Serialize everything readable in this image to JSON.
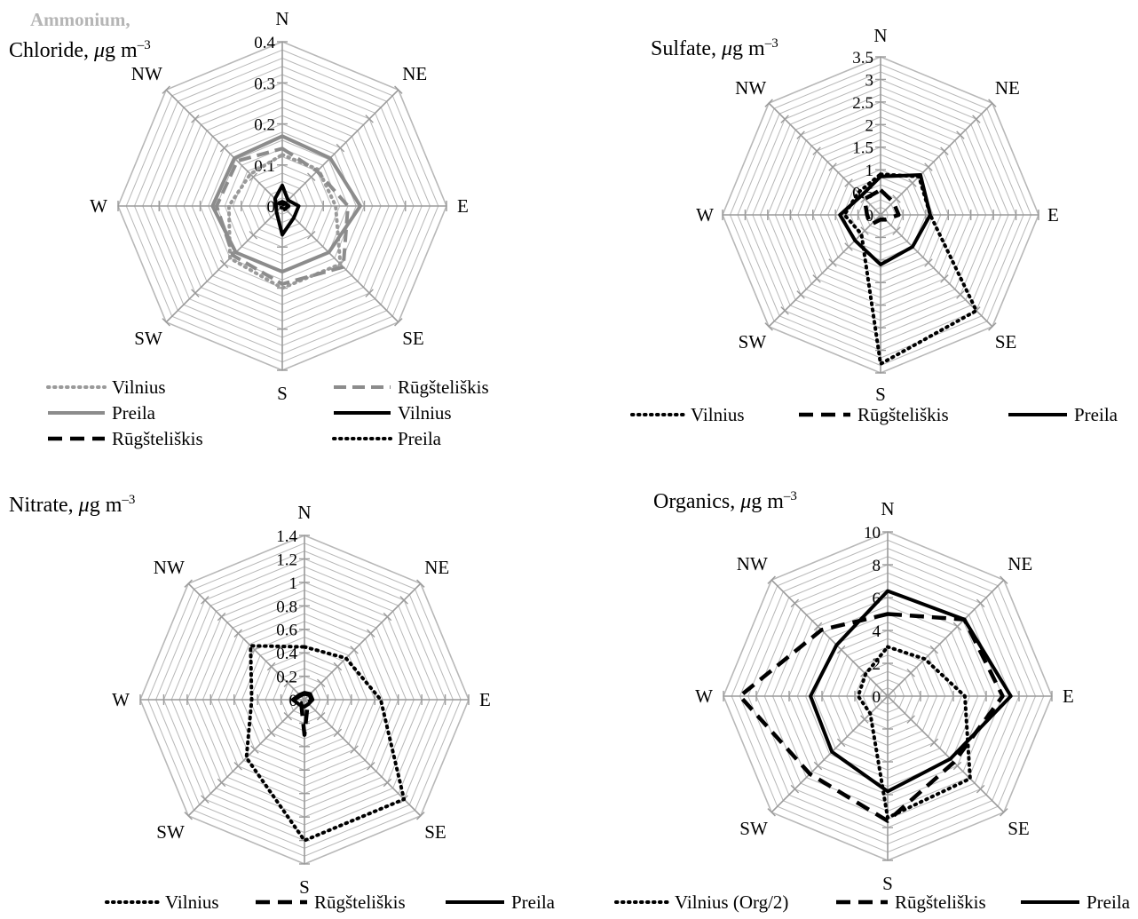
{
  "directions": [
    "N",
    "NE",
    "E",
    "SE",
    "S",
    "SW",
    "W",
    "NW"
  ],
  "colors": {
    "grid": "#b8b8b8",
    "axis": "#9a9a9a",
    "dark": "#000000",
    "gray_dotted": "#9a9a9a",
    "gray_solid": "#8c8c8c",
    "gray_dashed": "#8c8c8c"
  },
  "chart_data": [
    {
      "type": "radar",
      "title_top": "Ammonium,",
      "title": "Chloride, μg m⁻³",
      "ylim": [
        0,
        0.4
      ],
      "ticks": [
        "0",
        "0.1",
        "0.2",
        "0.3",
        "0.4"
      ],
      "tick_values": [
        0,
        0.1,
        0.2,
        0.3,
        0.4
      ],
      "legend_layout": "two-column",
      "series": [
        {
          "name": "Vilnius",
          "group": "Ammonium",
          "style": "dotted-gray",
          "values": [
            0.125,
            0.125,
            0.13,
            0.2,
            0.2,
            0.18,
            0.13,
            0.11
          ]
        },
        {
          "name": "Preila",
          "group": "Ammonium",
          "style": "solid-gray",
          "values": [
            0.17,
            0.165,
            0.19,
            0.16,
            0.16,
            0.16,
            0.17,
            0.165
          ]
        },
        {
          "name": "Rūgšteliškis",
          "group": "Ammonium",
          "style": "dashed-gray",
          "values": [
            0.14,
            0.12,
            0.16,
            0.21,
            0.19,
            0.17,
            0.16,
            0.155
          ]
        },
        {
          "name": "Vilnius",
          "group": "Chloride",
          "style": "solid-black",
          "values": [
            0.05,
            0.02,
            0.04,
            0.04,
            0.07,
            0.02,
            0.015,
            0.025
          ]
        },
        {
          "name": "Rūgšteliškis",
          "group": "Chloride",
          "style": "dashed-black",
          "values": [
            0.01,
            0.01,
            0.015,
            0.01,
            0.01,
            0.01,
            0.01,
            0.01
          ]
        },
        {
          "name": "Preila",
          "group": "Chloride",
          "style": "dotted-black",
          "values": [
            0.005,
            0.005,
            0.005,
            0.005,
            0.005,
            0.005,
            0.005,
            0.005
          ]
        }
      ]
    },
    {
      "type": "radar",
      "title": "Sulfate, μg m⁻³",
      "ylim": [
        0,
        3.5
      ],
      "ticks": [
        "0",
        "0.5",
        "1",
        "1.5",
        "2",
        "2.5",
        "3",
        "3.5"
      ],
      "tick_values": [
        0,
        0.5,
        1,
        1.5,
        2,
        2.5,
        3,
        3.5
      ],
      "series": [
        {
          "name": "Vilnius",
          "style": "dotted-black",
          "values": [
            0.9,
            1.2,
            1.1,
            3.0,
            3.3,
            0.6,
            0.8,
            0.7
          ]
        },
        {
          "name": "Rūgšteliškis",
          "style": "dashed-black",
          "values": [
            0.55,
            0.4,
            0.4,
            0.15,
            0.1,
            0.3,
            0.3,
            0.5
          ]
        },
        {
          "name": "Preila",
          "style": "solid-black",
          "values": [
            0.85,
            1.25,
            1.1,
            1.0,
            1.1,
            0.8,
            0.9,
            0.6
          ]
        }
      ]
    },
    {
      "type": "radar",
      "title": "Nitrate, μg m⁻³",
      "ylim": [
        0,
        1.4
      ],
      "ticks": [
        "0",
        "0.2",
        "0.4",
        "0.6",
        "0.8",
        "1",
        "1.2",
        "1.4"
      ],
      "tick_values": [
        0,
        0.2,
        0.4,
        0.6,
        0.8,
        1,
        1.2,
        1.4
      ],
      "series": [
        {
          "name": "Vilnius",
          "style": "dotted-black",
          "values": [
            0.45,
            0.5,
            0.65,
            1.2,
            1.2,
            0.7,
            0.45,
            0.65
          ]
        },
        {
          "name": "Rūgšteliškis",
          "style": "dashed-black",
          "values": [
            0.05,
            0.06,
            0.06,
            0.04,
            0.3,
            0.04,
            0.09,
            0.05
          ]
        },
        {
          "name": "Preila",
          "style": "solid-black",
          "values": [
            0.06,
            0.07,
            0.07,
            0.05,
            0.06,
            0.06,
            0.1,
            0.06
          ]
        }
      ]
    },
    {
      "type": "radar",
      "title": "Organics, μg m⁻³",
      "ylim": [
        0,
        10
      ],
      "ticks": [
        "0",
        "2",
        "4",
        "6",
        "8",
        "10"
      ],
      "tick_values": [
        0,
        2,
        4,
        6,
        8,
        10
      ],
      "series": [
        {
          "name": "Vilnius  (Org/2)",
          "style": "dotted-black",
          "values": [
            3.0,
            3.2,
            4.7,
            7.1,
            7.4,
            1.5,
            1.8,
            1.9
          ]
        },
        {
          "name": "Rūgšteliškis",
          "style": "dashed-black",
          "values": [
            5.0,
            6.6,
            7.0,
            5.7,
            7.6,
            6.7,
            9.0,
            5.7
          ]
        },
        {
          "name": "Preila",
          "style": "solid-black",
          "values": [
            6.4,
            6.6,
            7.5,
            5.4,
            5.8,
            4.8,
            4.7,
            4.4
          ]
        }
      ]
    }
  ]
}
